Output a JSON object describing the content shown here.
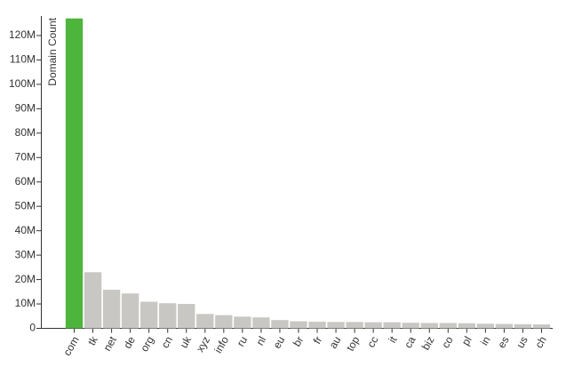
{
  "chart_data": {
    "type": "bar",
    "y_label": "Domain Count",
    "categories": [
      "com",
      "tk",
      "net",
      "de",
      "org",
      "cn",
      "uk",
      "xyz",
      "info",
      "ru",
      "nl",
      "eu",
      "br",
      "fr",
      "au",
      "top",
      "cc",
      "it",
      "ca",
      "biz",
      "co",
      "pl",
      "in",
      "es",
      "us",
      "ch"
    ],
    "values": [
      127000000,
      23000000,
      15800000,
      14300000,
      10900000,
      10300000,
      10000000,
      5900000,
      5400000,
      4800000,
      4500000,
      3400000,
      2900000,
      2700000,
      2600000,
      2600000,
      2500000,
      2500000,
      2300000,
      2200000,
      2200000,
      2100000,
      1900000,
      1800000,
      1700000,
      1600000
    ],
    "colors": [
      "#4db53c",
      "#c8c7c3",
      "#c8c7c3",
      "#c8c7c3",
      "#c8c7c3",
      "#c8c7c3",
      "#c8c7c3",
      "#c8c7c3",
      "#c8c7c3",
      "#c8c7c3",
      "#c8c7c3",
      "#c8c7c3",
      "#c8c7c3",
      "#c8c7c3",
      "#c8c7c3",
      "#c8c7c3",
      "#c8c7c3",
      "#c8c7c3",
      "#c8c7c3",
      "#c8c7c3",
      "#c8c7c3",
      "#c8c7c3",
      "#c8c7c3",
      "#c8c7c3",
      "#c8c7c3",
      "#c8c7c3"
    ],
    "ylim": [
      0,
      128000000
    ],
    "yticks": [
      0,
      {
        "value": 10000000,
        "label": "10M"
      },
      {
        "value": 20000000,
        "label": "20M"
      },
      {
        "value": 30000000,
        "label": "30M"
      },
      {
        "value": 40000000,
        "label": "40M"
      },
      {
        "value": 50000000,
        "label": "50M"
      },
      {
        "value": 60000000,
        "label": "60M"
      },
      {
        "value": 70000000,
        "label": "70M"
      },
      {
        "value": 80000000,
        "label": "80M"
      },
      {
        "value": 90000000,
        "label": "90M"
      },
      {
        "value": 100000000,
        "label": "100M"
      },
      {
        "value": 110000000,
        "label": "110M"
      },
      {
        "value": 120000000,
        "label": "120M"
      }
    ],
    "grid": false
  }
}
